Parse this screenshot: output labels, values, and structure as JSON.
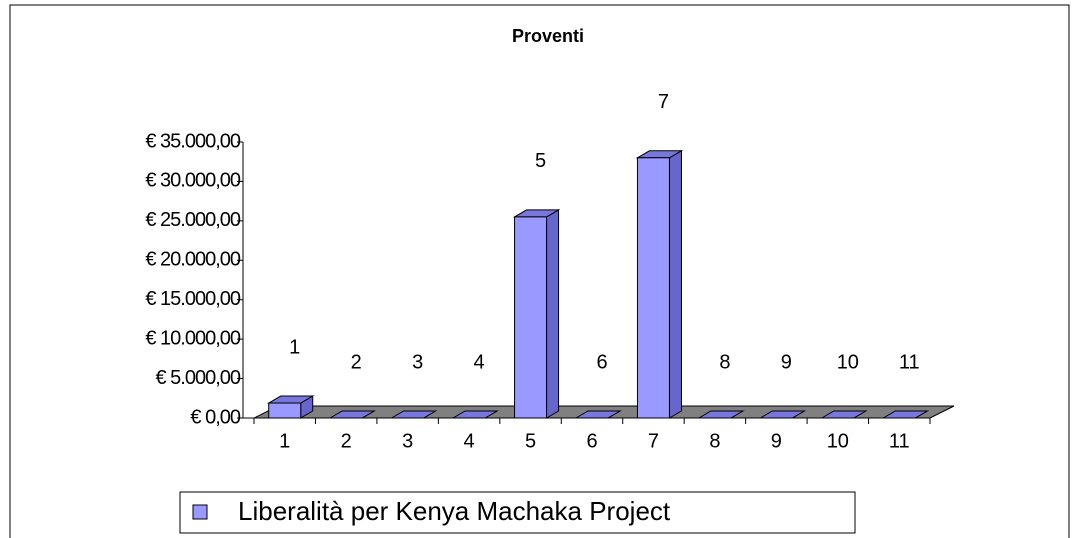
{
  "chart_data": {
    "type": "bar3d",
    "title": "Proventi",
    "categories": [
      "1",
      "2",
      "3",
      "4",
      "5",
      "6",
      "7",
      "8",
      "9",
      "10",
      "11"
    ],
    "series": [
      {
        "name": "Liberalità per Kenya Machaka Project",
        "color": "#9999ff",
        "values": [
          1900,
          0,
          0,
          0,
          25500,
          0,
          33000,
          0,
          0,
          0,
          0
        ]
      }
    ],
    "ylim": [
      0,
      35000
    ],
    "yticks": [
      {
        "value": 0,
        "label": "€ 0,00"
      },
      {
        "value": 5000,
        "label": "€ 5.000,00"
      },
      {
        "value": 10000,
        "label": "€ 10.000,00"
      },
      {
        "value": 15000,
        "label": "€ 15.000,00"
      },
      {
        "value": 20000,
        "label": "€ 20.000,00"
      },
      {
        "value": 25000,
        "label": "€ 25.000,00"
      },
      {
        "value": 30000,
        "label": "€ 30.000,00"
      },
      {
        "value": 35000,
        "label": "€ 35.000,00"
      }
    ],
    "grid": false,
    "legend": "bottom"
  }
}
